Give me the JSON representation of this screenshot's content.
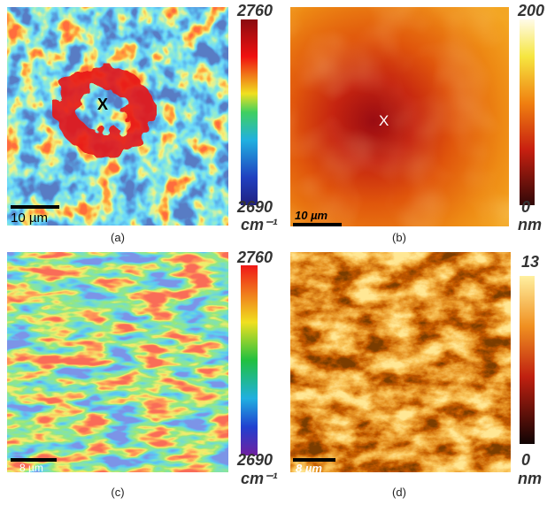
{
  "panels": [
    {
      "label": "(a)",
      "marker": "X",
      "scale_bar": "10 µm",
      "colorbar": {
        "max": 2760,
        "min": 2690,
        "unit": "cm⁻¹"
      }
    },
    {
      "label": "(b)",
      "marker": "X",
      "scale_bar": "10 µm",
      "colorbar": {
        "max": 200,
        "min": 0,
        "unit": "nm"
      }
    },
    {
      "label": "(c)",
      "scale_bar": "8 µm",
      "colorbar": {
        "max": 2760,
        "min": 2690,
        "unit": "cm⁻¹"
      }
    },
    {
      "label": "(d)",
      "scale_bar": "8 µm",
      "colorbar": {
        "max": 13,
        "min": 0,
        "unit": "nm"
      }
    }
  ]
}
